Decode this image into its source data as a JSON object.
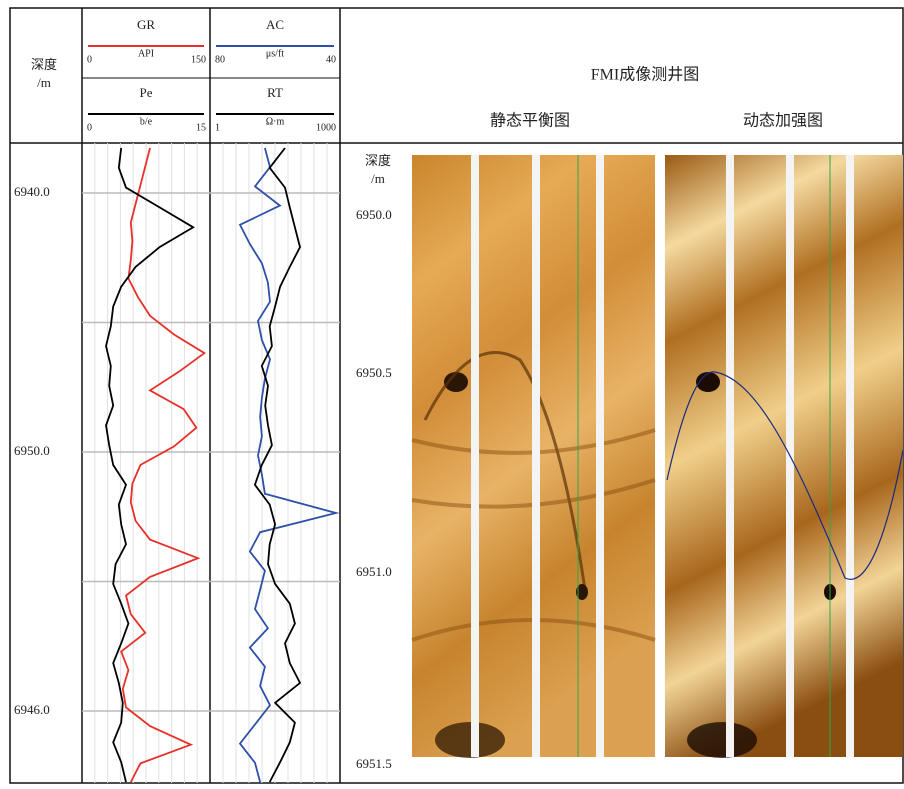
{
  "chart_data": {
    "type": "well-log",
    "depth_title": "深度",
    "depth_unit": "/m",
    "depth_ticks": [
      "6940.0",
      "6950.0",
      "6946.0"
    ],
    "tracks": [
      {
        "series": [
          {
            "name": "GR",
            "unit": "API",
            "color": "#e8302a",
            "xlim": [
              0,
              150
            ],
            "values": [
              80,
              74,
              68,
              62,
              56,
              58,
              56,
              53,
              65,
              80,
              110,
              148,
              116,
              80,
              122,
              138,
              110,
              68,
              58,
              56,
              62,
              80,
              140,
              80,
              50,
              56,
              74,
              44,
              53,
              46,
              50,
              80,
              131,
              68,
              56
            ]
          },
          {
            "name": "Pe",
            "unit": "b/e",
            "color": "#000000",
            "xlim": [
              0,
              15
            ],
            "values": [
              4.4,
              4.1,
              5.0,
              9.2,
              13.4,
              9.2,
              6.2,
              4.4,
              3.4,
              3.1,
              2.5,
              3.1,
              2.9,
              3.4,
              2.5,
              2.9,
              3.4,
              5.0,
              4.1,
              4.4,
              5.0,
              3.7,
              3.4,
              4.4,
              5.3,
              4.4,
              3.4,
              4.1,
              4.6,
              4.4,
              3.4,
              4.4,
              5.0
            ]
          }
        ]
      },
      {
        "series": [
          {
            "name": "AC",
            "unit": "μs/ft",
            "color": "#2e50a8",
            "xlim": [
              80,
              40
            ],
            "values": [
              63.7,
              62,
              67,
              58.7,
              72,
              68.7,
              64.7,
              62.7,
              62,
              66,
              64.7,
              62,
              63.7,
              64.7,
              65.3,
              64.7,
              66,
              64.7,
              63.7,
              40,
              65.3,
              68.7,
              63.7,
              65.3,
              67,
              62.7,
              68.7,
              63.7,
              65.3,
              62,
              67,
              72,
              67,
              65.3
            ]
          },
          {
            "name": "RT",
            "unit": "Ω·m",
            "color": "#000000",
            "xlim": [
              1,
              1000
            ],
            "log": true,
            "values": [
              53,
              22,
              53,
              70,
              94,
              126,
              70,
              40,
              30,
              22,
              25,
              14,
              20,
              17,
              20,
              25,
              14,
              9.4,
              22,
              30,
              22,
              20,
              30,
              70,
              94,
              53,
              70,
              126,
              30,
              94,
              70,
              40,
              22
            ]
          }
        ]
      }
    ],
    "fmi": {
      "title": "FMI成像测井图",
      "panels": [
        "静态平衡图",
        "动态加强图"
      ],
      "depth_title": "深度",
      "depth_unit": "/m",
      "depth_ticks": [
        "6950.0",
        "6950.5",
        "6951.0",
        "6951.5"
      ]
    }
  }
}
